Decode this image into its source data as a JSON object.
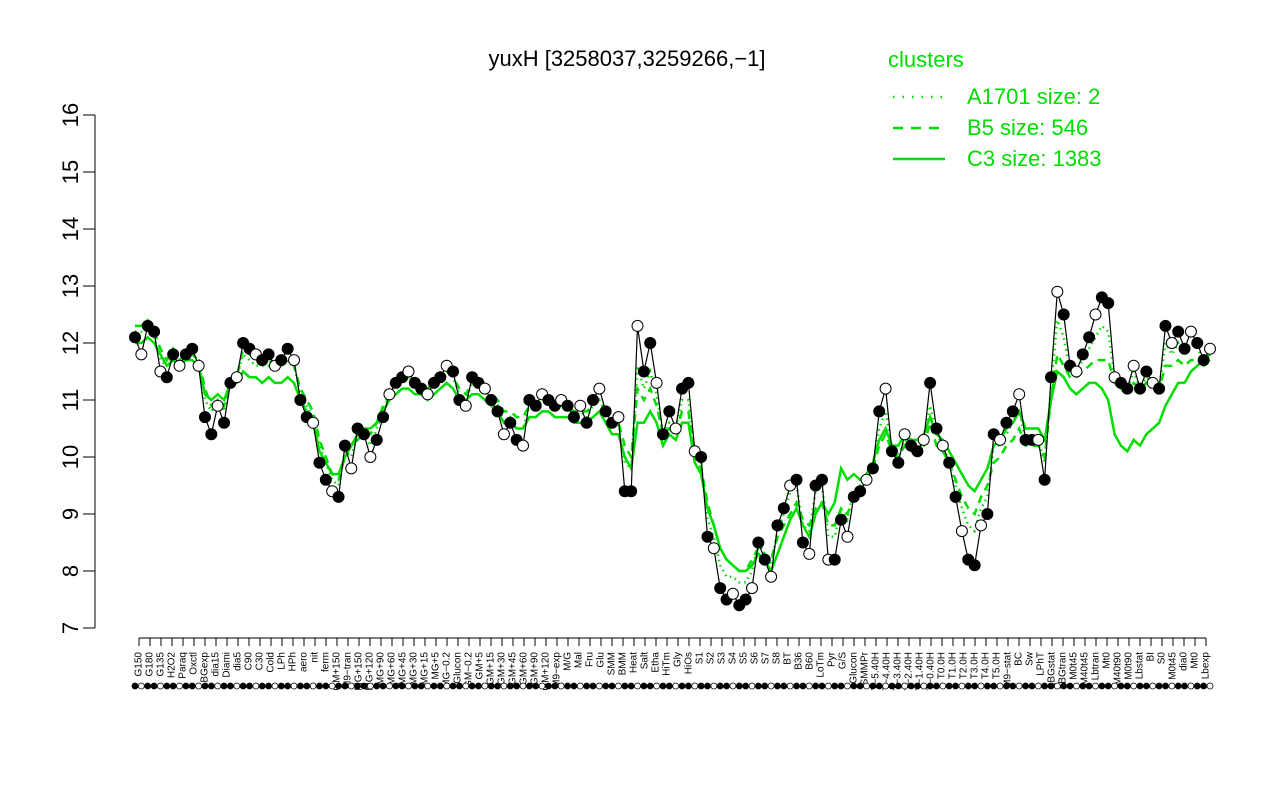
{
  "chart_data": {
    "type": "line",
    "title": "yuxH [3258037,3259266,−1]",
    "xlabel": "",
    "ylabel": "",
    "ylim": [
      7,
      16
    ],
    "y_ticks": [
      7,
      8,
      9,
      10,
      11,
      12,
      13,
      14,
      15,
      16
    ],
    "grid": false,
    "x_tick_labels": [
      "G150",
      "G180",
      "G135",
      "H2O2",
      "Paraq",
      "Oxctl",
      "LBGexp",
      "dia15",
      "Diami",
      "dia5",
      "C90",
      "C30",
      "Cold",
      "LPh",
      "HPh",
      "aero",
      "nit",
      "ferm",
      "GM+150",
      "M9−tran",
      "MG+150",
      "MG+120",
      "MG+90",
      "MG+60",
      "MG+45",
      "MG+30",
      "MG+15",
      "MG+5",
      "MG−0.2",
      "Glucon",
      "GM−0.2",
      "GM+5",
      "GM+15",
      "GM+30",
      "GM+45",
      "GM+60",
      "GM+90",
      "GM+120",
      "M9−exp",
      "M/G",
      "Mal",
      "Fru",
      "Glu",
      "SMM",
      "BMM",
      "Heat",
      "Salt",
      "Etha",
      "HiTm",
      "Gly",
      "HiOs",
      "S1",
      "S2",
      "S3",
      "S4",
      "S5",
      "S6",
      "S7",
      "S8",
      "BT",
      "B36",
      "B60",
      "LoTm",
      "Pyr",
      "G/S",
      "Glucon",
      "SMMPr",
      "T−5.40H",
      "T−4.40H",
      "T−3.40H",
      "T−2.40H",
      "T−1.40H",
      "T−0.40H",
      "T0.0H",
      "T1.0H",
      "T2.0H",
      "T3.0H",
      "T4.0H",
      "T5.0H",
      "M9−stat",
      "BC",
      "Sw",
      "LPhT",
      "LBGstat",
      "LBGtran",
      "M0t45",
      "M40t45",
      "Lbtran",
      "Mt0",
      "M40t90",
      "M0t90",
      "Lbstat",
      "BI",
      "S0",
      "M0t45",
      "dia0",
      "Mt0",
      "Lbexp"
    ],
    "legend": {
      "title": "clusters",
      "placement": "top-right",
      "entries": [
        {
          "label": "A1701 size: 2",
          "style": "dotted"
        },
        {
          "label": "B5 size: 546",
          "style": "dashed"
        },
        {
          "label": "C3 size: 1383",
          "style": "solid"
        }
      ]
    },
    "colors": {
      "cluster": "#00dd00",
      "series": "#000000",
      "axis": "#000000"
    },
    "series": [
      {
        "values": [
          12.1,
          11.8,
          12.3,
          12.2,
          11.5,
          11.4,
          11.8,
          11.6,
          11.8,
          11.9,
          11.6,
          10.7,
          10.4,
          10.9,
          10.6,
          11.3,
          11.4,
          12.0,
          11.9,
          11.8,
          11.7,
          11.8,
          11.6,
          11.7,
          11.9,
          11.7,
          11.0,
          10.7,
          10.6,
          9.9,
          9.6,
          9.4,
          9.3,
          10.2,
          9.8,
          10.5,
          10.4,
          10.0,
          10.3,
          10.7,
          11.1,
          11.3,
          11.4,
          11.5,
          11.3,
          11.2,
          11.1,
          11.3,
          11.4,
          11.6,
          11.5,
          11.0,
          10.9,
          11.4,
          11.3,
          11.2,
          11.0,
          10.8,
          10.4,
          10.6,
          10.3,
          10.2,
          11.0,
          10.9,
          11.1,
          11.0,
          10.9,
          11.0,
          10.9,
          10.7,
          10.9,
          10.6,
          11.0,
          11.2,
          10.8,
          10.6,
          10.7,
          9.4,
          9.4,
          12.3,
          11.5,
          12.0,
          11.3,
          10.4,
          10.8,
          10.5,
          11.2,
          11.3,
          10.1,
          10.0,
          8.6,
          8.4,
          7.7,
          7.5,
          7.6,
          7.4,
          7.5,
          7.7,
          8.5,
          8.2,
          7.9,
          8.8,
          9.1,
          9.5,
          9.6,
          8.5,
          8.3,
          9.5,
          9.6,
          8.2,
          8.2,
          8.9,
          8.6,
          9.3,
          9.4,
          9.6,
          9.8,
          10.8,
          11.2,
          10.1,
          9.9,
          10.4,
          10.2,
          10.1,
          10.3,
          11.3,
          10.5,
          10.2,
          9.9,
          9.3,
          8.7,
          8.2,
          8.1,
          8.8,
          9.0,
          10.4,
          10.3,
          10.6,
          10.8,
          11.1,
          10.3,
          10.3,
          10.3,
          9.6,
          11.4,
          12.9,
          12.5,
          11.6,
          11.5,
          11.8,
          12.1,
          12.5,
          12.8,
          12.7,
          11.4,
          11.3,
          11.2,
          11.6,
          11.2,
          11.5,
          11.3,
          11.2,
          12.3,
          12.0,
          12.2,
          11.9,
          12.2,
          12.0,
          11.7,
          11.9
        ]
      }
    ],
    "cluster_lines": [
      {
        "name": "B5 size: 546",
        "values": [
          12.3,
          12.3,
          12.4,
          12.2,
          11.9,
          11.7,
          11.9,
          11.7,
          11.8,
          11.8,
          11.7,
          11.2,
          10.9,
          11.0,
          10.9,
          11.3,
          11.4,
          11.9,
          11.8,
          11.7,
          11.7,
          11.7,
          11.6,
          11.6,
          11.7,
          11.6,
          11.2,
          11.0,
          10.8,
          10.3,
          10.0,
          9.7,
          9.6,
          10.0,
          10.2,
          10.3,
          10.4,
          10.4,
          10.6,
          10.9,
          11.1,
          11.3,
          11.4,
          11.4,
          11.3,
          11.2,
          11.2,
          11.3,
          11.4,
          11.5,
          11.4,
          11.2,
          11.1,
          11.3,
          11.3,
          11.2,
          11.1,
          11.0,
          10.8,
          10.8,
          10.7,
          10.7,
          10.9,
          10.9,
          11.0,
          11.0,
          10.9,
          10.9,
          10.9,
          10.8,
          10.8,
          10.8,
          10.9,
          11.0,
          10.8,
          10.6,
          10.6,
          10.2,
          10.0,
          11.2,
          11.0,
          11.2,
          10.9,
          10.4,
          10.5,
          10.4,
          10.8,
          10.8,
          10.0,
          9.8,
          9.2,
          8.8,
          8.4,
          8.2,
          8.1,
          8.0,
          8.0,
          8.2,
          8.4,
          8.3,
          8.2,
          8.6,
          8.8,
          9.0,
          9.2,
          8.9,
          8.8,
          9.1,
          9.2,
          8.8,
          8.8,
          9.1,
          9.0,
          9.3,
          9.4,
          9.6,
          9.8,
          10.2,
          10.4,
          10.1,
          10.0,
          10.2,
          10.1,
          10.1,
          10.2,
          10.6,
          10.2,
          10.1,
          9.9,
          9.6,
          9.3,
          9.1,
          9.0,
          9.3,
          9.5,
          9.9,
          10.0,
          10.2,
          10.3,
          10.5,
          10.2,
          10.2,
          10.2,
          10.0,
          11.0,
          11.8,
          11.6,
          11.4,
          11.4,
          11.5,
          11.6,
          11.7,
          11.7,
          11.7,
          11.3,
          11.2,
          11.2,
          11.3,
          11.2,
          11.3,
          11.2,
          11.2,
          11.6,
          11.6,
          11.7,
          11.6,
          11.7,
          11.7,
          11.6,
          11.7
        ]
      },
      {
        "name": "C3 size: 1383",
        "values": [
          12.0,
          12.0,
          12.1,
          12.0,
          11.8,
          11.6,
          11.7,
          11.6,
          11.7,
          11.7,
          11.6,
          11.1,
          11.0,
          11.1,
          11.0,
          11.3,
          11.3,
          11.5,
          11.4,
          11.4,
          11.3,
          11.4,
          11.3,
          11.3,
          11.4,
          11.3,
          11.0,
          10.8,
          10.6,
          10.1,
          9.9,
          9.7,
          9.7,
          10.0,
          10.2,
          10.4,
          10.5,
          10.5,
          10.6,
          10.8,
          11.0,
          11.1,
          11.2,
          11.2,
          11.1,
          11.1,
          11.0,
          11.1,
          11.2,
          11.3,
          11.2,
          11.0,
          11.0,
          11.1,
          11.1,
          11.0,
          10.9,
          10.8,
          10.6,
          10.6,
          10.5,
          10.5,
          10.7,
          10.7,
          10.8,
          10.8,
          10.7,
          10.7,
          10.7,
          10.6,
          10.6,
          10.6,
          10.7,
          10.8,
          10.6,
          10.4,
          10.4,
          10.0,
          9.8,
          10.6,
          10.6,
          10.8,
          10.6,
          10.2,
          10.4,
          10.3,
          10.6,
          10.6,
          9.9,
          9.7,
          9.1,
          8.8,
          8.4,
          8.2,
          8.1,
          8.0,
          8.0,
          8.1,
          8.3,
          8.2,
          8.0,
          8.3,
          8.6,
          8.9,
          9.1,
          8.8,
          8.6,
          9.0,
          9.2,
          9.0,
          9.2,
          9.8,
          9.6,
          9.7,
          9.6,
          9.7,
          9.9,
          10.3,
          10.5,
          10.2,
          10.2,
          10.4,
          10.3,
          10.3,
          10.4,
          10.7,
          10.4,
          10.3,
          10.1,
          9.9,
          9.7,
          9.5,
          9.4,
          9.6,
          9.8,
          10.2,
          10.3,
          10.5,
          10.6,
          10.8,
          10.5,
          10.5,
          10.5,
          10.3,
          11.0,
          11.5,
          11.4,
          11.2,
          11.1,
          11.2,
          11.3,
          11.3,
          11.2,
          11.0,
          10.4,
          10.2,
          10.1,
          10.3,
          10.2,
          10.4,
          10.5,
          10.6,
          10.9,
          11.1,
          11.3,
          11.3,
          11.5,
          11.6,
          11.7,
          11.8
        ]
      },
      {
        "name": "A1701 size: 2",
        "values": [
          12.2,
          12.2,
          12.3,
          12.1,
          11.7,
          11.6,
          11.8,
          11.7,
          11.8,
          11.8,
          11.7,
          11.0,
          10.8,
          11.0,
          10.8,
          11.3,
          11.4,
          11.8,
          11.7,
          11.6,
          11.6,
          11.6,
          11.5,
          11.6,
          11.7,
          11.6,
          11.1,
          10.9,
          10.7,
          10.2,
          9.9,
          9.6,
          9.5,
          10.1,
          10.0,
          10.4,
          10.4,
          10.2,
          10.5,
          10.8,
          11.1,
          11.3,
          11.4,
          11.4,
          11.3,
          11.2,
          11.1,
          11.3,
          11.4,
          11.5,
          11.4,
          11.1,
          11.0,
          11.3,
          11.3,
          11.2,
          11.0,
          10.9,
          10.6,
          10.7,
          10.5,
          10.5,
          10.9,
          10.9,
          11.0,
          11.0,
          10.9,
          10.9,
          10.9,
          10.7,
          10.8,
          10.7,
          10.9,
          11.0,
          10.8,
          10.6,
          10.6,
          9.9,
          9.8,
          11.6,
          11.2,
          11.5,
          11.1,
          10.4,
          10.6,
          10.5,
          11.0,
          11.0,
          10.1,
          9.9,
          8.9,
          8.6,
          8.1,
          7.9,
          7.9,
          7.8,
          7.8,
          8.0,
          8.5,
          8.3,
          8.1,
          8.7,
          9.0,
          9.4,
          9.5,
          8.8,
          8.7,
          9.4,
          9.5,
          8.6,
          8.6,
          9.1,
          8.9,
          9.4,
          9.5,
          9.6,
          9.8,
          10.5,
          10.8,
          10.1,
          10.0,
          10.3,
          10.2,
          10.1,
          10.3,
          10.9,
          10.4,
          10.2,
          9.9,
          9.5,
          9.1,
          8.8,
          8.7,
          9.1,
          9.3,
          10.2,
          10.2,
          10.4,
          10.6,
          10.8,
          10.3,
          10.3,
          10.3,
          9.9,
          11.2,
          12.4,
          12.1,
          11.5,
          11.5,
          11.7,
          11.9,
          12.1,
          12.3,
          12.2,
          11.4,
          11.3,
          11.2,
          11.5,
          11.2,
          11.4,
          11.3,
          11.2,
          12.0,
          11.8,
          12.0,
          11.8,
          12.0,
          11.9,
          11.7,
          11.8
        ]
      }
    ]
  }
}
